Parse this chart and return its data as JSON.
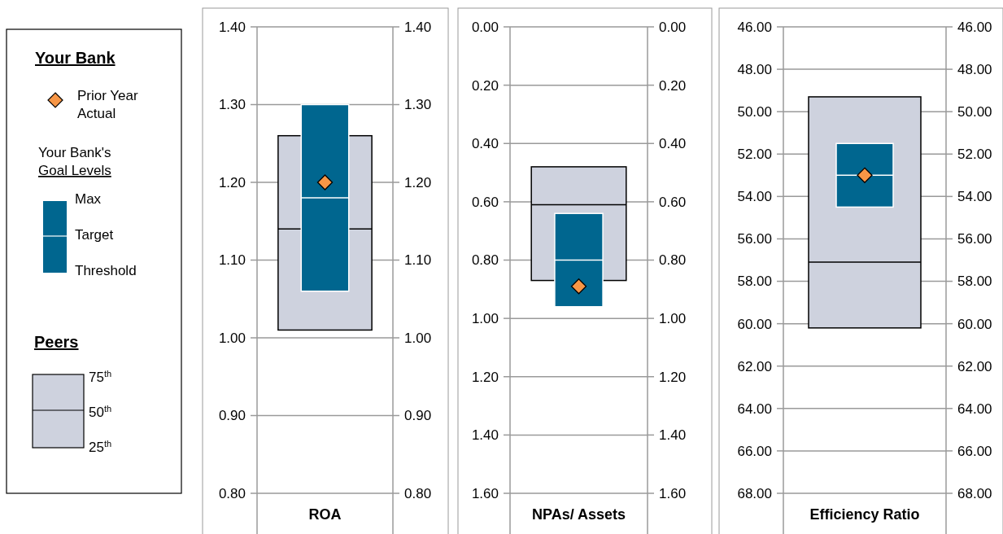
{
  "chart_data": [
    {
      "type": "other",
      "title": "Your Bank",
      "annotations": [
        "Prior Year Actual",
        "Your Bank's",
        "Goal Levels",
        "Max",
        "Target",
        "Threshold",
        "Peers",
        "75$^{th}$",
        "50$^{th}$",
        "25$^{th}$"
      ]
    },
    {
      "type": "box",
      "xlabel": "ROA",
      "categories": [
        null
      ],
      "ylim": [
        0.8,
        1.4
      ],
      "yticks": [
        {
          "value": 0.8,
          "label": "0.80"
        },
        {
          "value": 0.9,
          "label": "0.90"
        },
        {
          "value": 1.0,
          "label": "1.00"
        },
        {
          "value": 1.1,
          "label": "1.10"
        },
        {
          "value": 1.2,
          "label": "1.20"
        },
        {
          "value": 1.3,
          "label": "1.30"
        },
        {
          "value": 1.4,
          "label": "1.40"
        }
      ],
      "y2lim": [
        0.8,
        1.4
      ],
      "y2ticks": [
        {
          "value": 0.8,
          "label": "0.80"
        },
        {
          "value": 0.9,
          "label": "0.90"
        },
        {
          "value": 1.0,
          "label": "1.00"
        },
        {
          "value": 1.1,
          "label": "1.10"
        },
        {
          "value": 1.2,
          "label": "1.20"
        },
        {
          "value": 1.3,
          "label": "1.30"
        },
        {
          "value": 1.4,
          "label": "1.40"
        }
      ],
      "grid": "y",
      "marker": "diamond",
      "series": [
        {
          "type": "box",
          "color": "#ced2de",
          "boxes": [
            {
              "low": 1.01,
              "q1": 1.01,
              "median": 1.14,
              "q3": 1.26,
              "high": 1.26
            }
          ]
        },
        {
          "type": "box",
          "color": "#00668f",
          "boxes": [
            {
              "low": 1.06,
              "q1": 1.06,
              "median": 1.18,
              "q3": 1.3,
              "high": 1.3
            }
          ]
        },
        {
          "type": "scatter",
          "color": "#f79646",
          "values": [
            1.2
          ]
        }
      ]
    },
    {
      "type": "box",
      "xlabel": "NPAs/ Assets",
      "categories": [
        null
      ],
      "ylim": [
        1.6,
        0.0
      ],
      "yticks": [
        {
          "value": 0.0,
          "label": "0.00"
        },
        {
          "value": 0.2,
          "label": "0.20"
        },
        {
          "value": 0.4,
          "label": "0.40"
        },
        {
          "value": 0.6,
          "label": "0.60"
        },
        {
          "value": 0.8,
          "label": "0.80"
        },
        {
          "value": 1.0,
          "label": "1.00"
        },
        {
          "value": 1.2,
          "label": "1.20"
        },
        {
          "value": 1.4,
          "label": "1.40"
        },
        {
          "value": 1.6,
          "label": "1.60"
        }
      ],
      "y2lim": [
        1.6,
        0.0
      ],
      "y2ticks": [
        {
          "value": 0.0,
          "label": "0.00"
        },
        {
          "value": 0.2,
          "label": "0.20"
        },
        {
          "value": 0.4,
          "label": "0.40"
        },
        {
          "value": 0.6,
          "label": "0.60"
        },
        {
          "value": 0.8,
          "label": "0.80"
        },
        {
          "value": 1.0,
          "label": "1.00"
        },
        {
          "value": 1.2,
          "label": "1.20"
        },
        {
          "value": 1.4,
          "label": "1.40"
        },
        {
          "value": 1.6,
          "label": "1.60"
        }
      ],
      "grid": "y",
      "marker": "diamond",
      "series": [
        {
          "type": "box",
          "color": "#ced2de",
          "boxes": [
            {
              "low": 0.48,
              "q1": 0.48,
              "median": 0.61,
              "q3": 0.87,
              "high": 0.87
            }
          ]
        },
        {
          "type": "box",
          "color": "#00668f",
          "boxes": [
            {
              "low": 0.64,
              "q1": 0.64,
              "median": 0.8,
              "q3": 0.96,
              "high": 0.96
            }
          ]
        },
        {
          "type": "scatter",
          "color": "#f79646",
          "values": [
            0.89
          ]
        }
      ]
    },
    {
      "type": "box",
      "xlabel": "Efficiency Ratio",
      "categories": [
        null
      ],
      "ylim": [
        68,
        46
      ],
      "yticks": [
        {
          "value": 46,
          "label": "46.00"
        },
        {
          "value": 48,
          "label": "48.00"
        },
        {
          "value": 50,
          "label": "50.00"
        },
        {
          "value": 52,
          "label": "52.00"
        },
        {
          "value": 54,
          "label": "54.00"
        },
        {
          "value": 56,
          "label": "56.00"
        },
        {
          "value": 58,
          "label": "58.00"
        },
        {
          "value": 60,
          "label": "60.00"
        },
        {
          "value": 62,
          "label": "62.00"
        },
        {
          "value": 64,
          "label": "64.00"
        },
        {
          "value": 66,
          "label": "66.00"
        },
        {
          "value": 68,
          "label": "68.00"
        }
      ],
      "y2lim": [
        68,
        46
      ],
      "y2ticks": [
        {
          "value": 46,
          "label": "46.00"
        },
        {
          "value": 48,
          "label": "48.00"
        },
        {
          "value": 50,
          "label": "50.00"
        },
        {
          "value": 52,
          "label": "52.00"
        },
        {
          "value": 54,
          "label": "54.00"
        },
        {
          "value": 56,
          "label": "56.00"
        },
        {
          "value": 58,
          "label": "58.00"
        },
        {
          "value": 60,
          "label": "60.00"
        },
        {
          "value": 62,
          "label": "62.00"
        },
        {
          "value": 64,
          "label": "64.00"
        },
        {
          "value": 66,
          "label": "66.00"
        },
        {
          "value": 68,
          "label": "68.00"
        }
      ],
      "grid": "y",
      "marker": "diamond",
      "series": [
        {
          "type": "box",
          "color": "#ced2de",
          "boxes": [
            {
              "low": 49.3,
              "q1": 49.3,
              "median": 57.1,
              "q3": 60.2,
              "high": 60.2
            }
          ]
        },
        {
          "type": "box",
          "color": "#00668f",
          "boxes": [
            {
              "low": 51.5,
              "q1": 51.5,
              "median": 53.0,
              "q3": 54.5,
              "high": 54.5
            }
          ]
        },
        {
          "type": "scatter",
          "color": "#f79646",
          "values": [
            53.0
          ]
        }
      ]
    }
  ]
}
